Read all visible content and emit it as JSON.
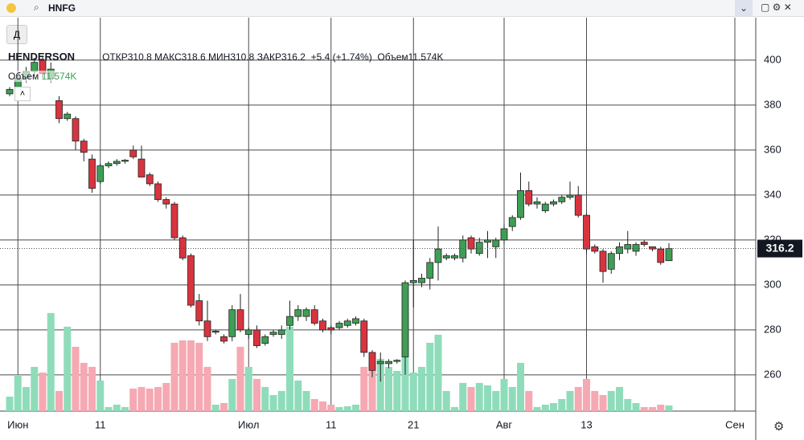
{
  "header": {
    "search": "HNFG",
    "interval": "Д"
  },
  "chart_data": {
    "type": "candlestick",
    "title": "HENDERSON",
    "ohlc_labels": {
      "open": "ОТКР",
      "high": "МАКС",
      "low": "МИН",
      "close": "ЗАКР"
    },
    "change_label": "+5.4 (+1.74%)",
    "volume_title": "Объем",
    "last_volume_label": "11.574K",
    "categories": [
      null,
      "Июн",
      null,
      null,
      null,
      null,
      null,
      null,
      null,
      null,
      null,
      "11",
      null,
      null,
      null,
      null,
      null,
      null,
      null,
      null,
      null,
      null,
      null,
      null,
      null,
      null,
      null,
      null,
      null,
      "Июл",
      null,
      null,
      null,
      null,
      null,
      null,
      null,
      null,
      null,
      "11",
      null,
      null,
      null,
      null,
      null,
      null,
      null,
      null,
      null,
      "21",
      null,
      null,
      null,
      null,
      null,
      null,
      null,
      null,
      null,
      null,
      "Авг",
      null,
      null,
      null,
      null,
      null,
      null,
      null,
      null,
      null,
      "13",
      null,
      null,
      null,
      null,
      null,
      null,
      null,
      null,
      null,
      null,
      null,
      null,
      null,
      null,
      null,
      null,
      null,
      "Сен",
      null,
      null
    ],
    "open": [
      385,
      388,
      392,
      395,
      400,
      392,
      382,
      374,
      374,
      364,
      356,
      346,
      353,
      354,
      355,
      360,
      356,
      349,
      345,
      338,
      336,
      321,
      313,
      293,
      284,
      279,
      277,
      277,
      289,
      278,
      280,
      274,
      278,
      278,
      282,
      286,
      286,
      289,
      284,
      281,
      281,
      282,
      283,
      284,
      270,
      265,
      265,
      266,
      268,
      301,
      301,
      303,
      310,
      312,
      312,
      312,
      321,
      314,
      319,
      317,
      320,
      326,
      330,
      342,
      336,
      333,
      336,
      337,
      339,
      340,
      331,
      317,
      315,
      307,
      314,
      316,
      315,
      319,
      317,
      316,
      310.8,
      null,
      null,
      null,
      null,
      null,
      null,
      null,
      null,
      null,
      null
    ],
    "high": [
      388,
      394,
      397,
      401,
      402,
      399,
      384,
      377,
      375,
      365,
      358,
      354,
      355,
      356,
      356,
      362,
      362,
      350,
      346,
      339,
      337,
      322,
      314,
      296,
      293,
      280,
      278,
      291,
      296,
      281,
      282,
      278,
      280,
      282,
      293,
      291,
      290,
      291,
      285,
      282,
      284,
      285,
      286,
      285,
      271,
      270,
      267,
      267,
      302,
      320,
      305,
      312,
      326,
      314,
      314,
      322,
      322,
      321,
      324,
      321,
      327,
      331,
      350,
      346,
      339,
      337,
      338,
      340,
      346,
      344,
      332,
      318,
      316,
      315,
      319,
      324,
      319,
      320,
      317,
      317,
      318.6,
      null,
      null,
      null,
      null,
      null,
      null,
      null,
      null,
      null,
      null
    ],
    "low": [
      384,
      386,
      390,
      393,
      392,
      390,
      372,
      373,
      360,
      355,
      341,
      345,
      352,
      353,
      354,
      356,
      348,
      344,
      337,
      334,
      320,
      311,
      290,
      282,
      275,
      278,
      274,
      275,
      279,
      276,
      272,
      273,
      277,
      276,
      280,
      284,
      284,
      282,
      279,
      278,
      280,
      281,
      282,
      268,
      259,
      257,
      263,
      265,
      260,
      290,
      299,
      298,
      302,
      311,
      311,
      310,
      314,
      313,
      312,
      312,
      318,
      324,
      329,
      335,
      334,
      332,
      335,
      336,
      338,
      330,
      314,
      314,
      301,
      305,
      311,
      314,
      313,
      317,
      315,
      309,
      310.8,
      null,
      null,
      null,
      null,
      null,
      null,
      null,
      null,
      null,
      null
    ],
    "close": [
      387,
      392,
      395,
      399,
      394,
      396,
      374,
      376,
      364,
      359,
      343,
      353,
      354,
      355,
      355.5,
      357,
      348,
      345,
      338,
      336,
      321,
      312,
      291,
      284,
      277,
      279.5,
      275,
      289,
      280,
      280,
      273,
      277,
      279,
      280,
      286,
      289,
      289,
      283,
      280,
      280,
      283,
      284,
      285,
      270,
      262,
      266,
      266,
      266.5,
      301,
      302,
      303,
      310,
      316,
      313,
      313,
      320,
      316,
      319,
      320,
      320,
      325,
      330,
      342,
      336,
      337,
      336,
      337,
      339,
      340,
      331,
      316,
      315,
      306,
      314,
      317,
      318,
      318,
      318,
      316,
      310,
      316.2,
      null,
      null,
      null,
      null,
      null,
      null,
      null,
      null,
      null,
      null
    ],
    "volume": [
      29.7,
      74.3,
      49.5,
      90.8,
      79.2,
      201.3,
      41.3,
      173.3,
      132,
      99,
      90.8,
      62.7,
      8.3,
      13.2,
      8.3,
      46.2,
      49.5,
      46.2,
      49.5,
      57.8,
      140.3,
      145.2,
      145.2,
      140.3,
      90.8,
      13.2,
      16.5,
      66,
      132,
      90.8,
      66,
      49.5,
      33,
      41.3,
      173.3,
      62.7,
      41.3,
      24.8,
      19.8,
      13.2,
      8.3,
      9.9,
      13.2,
      90.8,
      99,
      107.3,
      90.8,
      82.5,
      198,
      79.2,
      90.8,
      140.3,
      156.8,
      41.3,
      8.3,
      57.8,
      49.5,
      57.8,
      52.8,
      41.3,
      66,
      49.5,
      99,
      41.3,
      8.3,
      13.2,
      16.5,
      24.8,
      41.3,
      49.5,
      66,
      41.3,
      33,
      41.3,
      49.5,
      24.8,
      16.5,
      8.3,
      8.3,
      13.2,
      11.574,
      null,
      null,
      null,
      null,
      null,
      null,
      null,
      null,
      null,
      null
    ],
    "up_color": "#3f9e55",
    "down_color": "#d8343f",
    "volume_up_color": "#8fdcbb",
    "volume_down_color": "#f6a9b2",
    "ylim": [
      243.9,
      418.9
    ],
    "yticks": [
      260,
      280,
      300,
      320,
      340,
      360,
      380,
      400
    ],
    "volume_lim": [
      0,
      300
    ],
    "grid": true
  }
}
